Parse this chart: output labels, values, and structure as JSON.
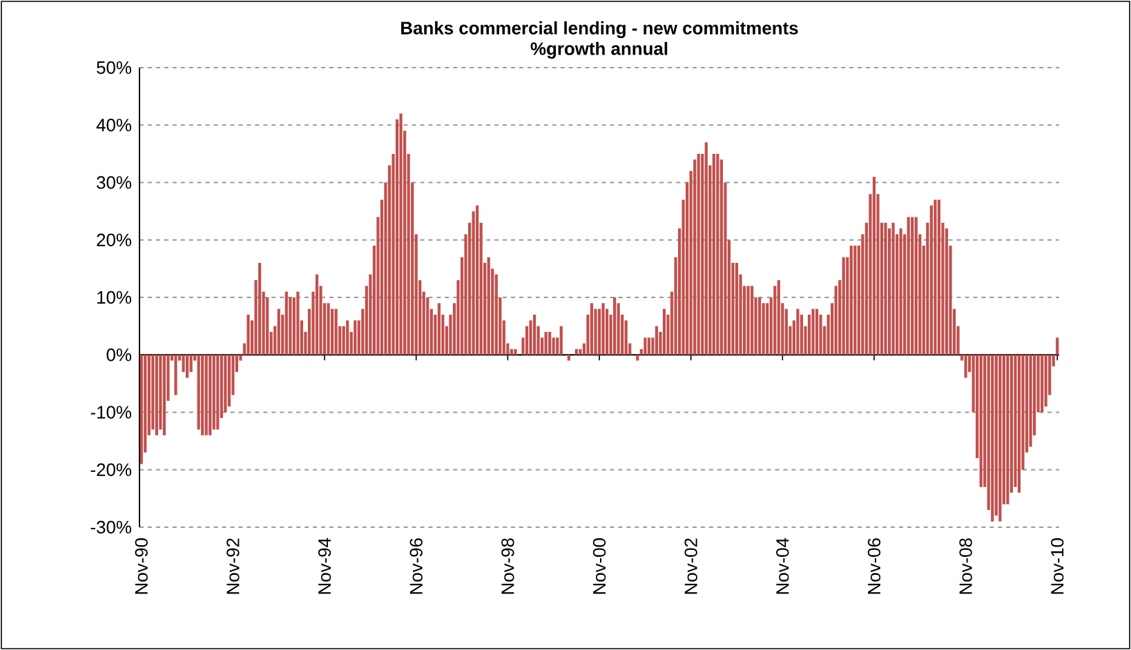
{
  "chart_data": {
    "type": "bar",
    "title": "Banks commercial  lending - new commitments",
    "subtitle": "%growth annual",
    "color": "#c0504d",
    "grid": "y",
    "ylim": [
      -30,
      50
    ],
    "yticks": [
      {
        "value": -30,
        "label": "-30%"
      },
      {
        "value": -20,
        "label": "-20%"
      },
      {
        "value": -10,
        "label": "-10%"
      },
      {
        "value": 0,
        "label": "0%"
      },
      {
        "value": 10,
        "label": "10%"
      },
      {
        "value": 20,
        "label": "20%"
      },
      {
        "value": 30,
        "label": "30%"
      },
      {
        "value": 40,
        "label": "40%"
      },
      {
        "value": 50,
        "label": "50%"
      }
    ],
    "categories": [
      "Nov-90",
      null,
      null,
      null,
      null,
      null,
      null,
      null,
      null,
      null,
      null,
      null,
      null,
      null,
      null,
      null,
      null,
      null,
      null,
      null,
      null,
      null,
      null,
      null,
      "Nov-92",
      null,
      null,
      null,
      null,
      null,
      null,
      null,
      null,
      null,
      null,
      null,
      null,
      null,
      null,
      null,
      null,
      null,
      null,
      null,
      null,
      null,
      null,
      null,
      "Nov-94",
      null,
      null,
      null,
      null,
      null,
      null,
      null,
      null,
      null,
      null,
      null,
      null,
      null,
      null,
      null,
      null,
      null,
      null,
      null,
      null,
      null,
      null,
      null,
      "Nov-96",
      null,
      null,
      null,
      null,
      null,
      null,
      null,
      null,
      null,
      null,
      null,
      null,
      null,
      null,
      null,
      null,
      null,
      null,
      null,
      null,
      null,
      null,
      null,
      "Nov-98",
      null,
      null,
      null,
      null,
      null,
      null,
      null,
      null,
      null,
      null,
      null,
      null,
      null,
      null,
      null,
      null,
      null,
      null,
      null,
      null,
      null,
      null,
      null,
      "Nov-00",
      null,
      null,
      null,
      null,
      null,
      null,
      null,
      null,
      null,
      null,
      null,
      null,
      null,
      null,
      null,
      null,
      null,
      null,
      null,
      null,
      null,
      null,
      null,
      "Nov-02",
      null,
      null,
      null,
      null,
      null,
      null,
      null,
      null,
      null,
      null,
      null,
      null,
      null,
      null,
      null,
      null,
      null,
      null,
      null,
      null,
      null,
      null,
      null,
      "Nov-04",
      null,
      null,
      null,
      null,
      null,
      null,
      null,
      null,
      null,
      null,
      null,
      null,
      null,
      null,
      null,
      null,
      null,
      null,
      null,
      null,
      null,
      null,
      null,
      "Nov-06",
      null,
      null,
      null,
      null,
      null,
      null,
      null,
      null,
      null,
      null,
      null,
      null,
      null,
      null,
      null,
      null,
      null,
      null,
      null,
      null,
      null,
      null,
      null,
      "Nov-08",
      null,
      null,
      null,
      null,
      null,
      null,
      null,
      null,
      null,
      null,
      null,
      null,
      null,
      null,
      null,
      null,
      null,
      null,
      null,
      null,
      null,
      null,
      null,
      "Nov-10"
    ],
    "values": [
      -19,
      -17,
      -14,
      -13,
      -14,
      -13,
      -14,
      -8,
      -1,
      -7,
      -1,
      -3,
      -4,
      -3,
      -1,
      -13,
      -14,
      -14,
      -14,
      -13,
      -13,
      -11,
      -10,
      -9,
      -7,
      -3,
      -1,
      2,
      7,
      6,
      13,
      16,
      11,
      10,
      4,
      5,
      8,
      7,
      11,
      10,
      10,
      11,
      6,
      4,
      8,
      11,
      14,
      12,
      9,
      9,
      8,
      8,
      5,
      5,
      6,
      4,
      6,
      6,
      8,
      12,
      14,
      19,
      24,
      27,
      30,
      33,
      35,
      41,
      42,
      39,
      35,
      30,
      21,
      13,
      11,
      10,
      8,
      7,
      9,
      7,
      5,
      7,
      9,
      13,
      17,
      21,
      23,
      25,
      26,
      23,
      16,
      17,
      15,
      14,
      10,
      6,
      2,
      1,
      1,
      0,
      3,
      5,
      6,
      7,
      5,
      3,
      4,
      4,
      3,
      3,
      5,
      0,
      -1,
      0,
      1,
      1,
      2,
      7,
      9,
      8,
      8,
      9,
      8,
      7,
      10,
      9,
      7,
      6,
      2,
      0,
      -1,
      1,
      3,
      3,
      3,
      5,
      4,
      8,
      7,
      11,
      17,
      22,
      27,
      30,
      32,
      34,
      35,
      35,
      37,
      33,
      35,
      35,
      34,
      30,
      20,
      16,
      16,
      14,
      12,
      12,
      12,
      10,
      10,
      9,
      9,
      10,
      12,
      13,
      9,
      8,
      5,
      6,
      8,
      7,
      5,
      7,
      8,
      8,
      7,
      5,
      7,
      9,
      12,
      13,
      17,
      17,
      19,
      19,
      19,
      21,
      23,
      28,
      31,
      28,
      23,
      23,
      22,
      23,
      21,
      22,
      21,
      24,
      24,
      24,
      21,
      19,
      23,
      26,
      27,
      27,
      23,
      22,
      19,
      8,
      5,
      -1,
      -4,
      -3,
      -10,
      -18,
      -23,
      -23,
      -27,
      -29,
      -28,
      -29,
      -26,
      -26,
      -24,
      -23,
      -24,
      -20,
      -17,
      -16,
      -14,
      -10,
      -10,
      -9,
      -7,
      -2,
      3
    ]
  }
}
